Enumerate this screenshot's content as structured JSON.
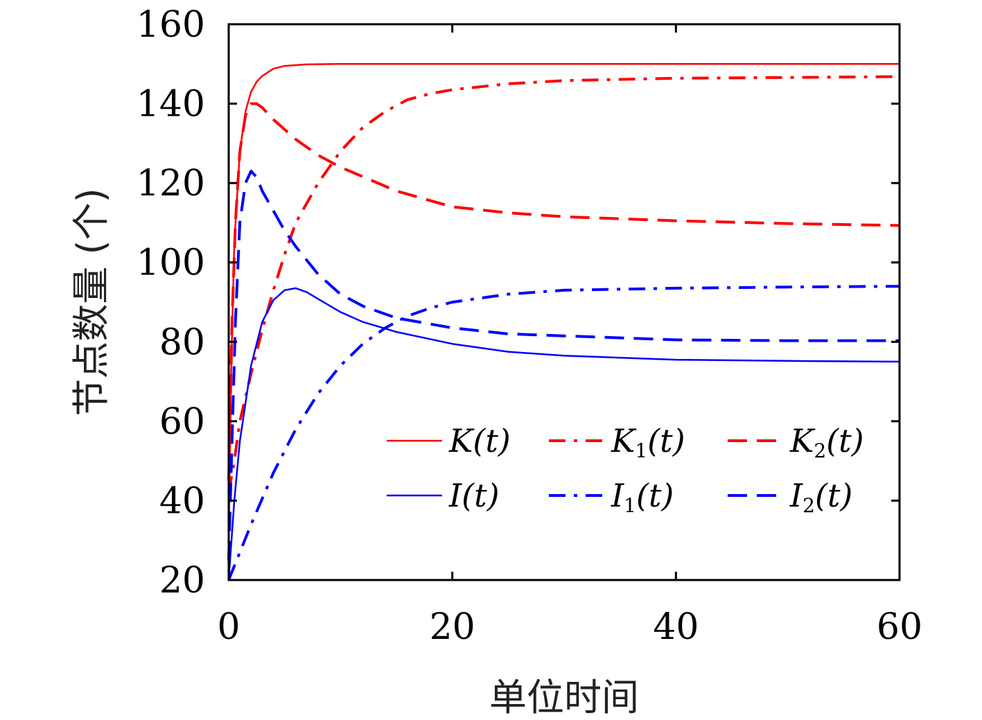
{
  "chart_data": {
    "type": "line",
    "title": "",
    "xlabel": "单位时间",
    "ylabel": "节点数量 (个)",
    "xlim": [
      0,
      60
    ],
    "ylim": [
      20,
      160
    ],
    "xticks": [
      0,
      20,
      40,
      60
    ],
    "yticks": [
      20,
      40,
      60,
      80,
      100,
      120,
      140,
      160
    ],
    "grid": false,
    "legend_position": "lower-right",
    "series": [
      {
        "name": "K(t)",
        "label_main": "K",
        "label_sub": "",
        "color": "#ff0000",
        "dash": "solid",
        "width": 2.5,
        "x": [
          0,
          0.2,
          0.5,
          1,
          1.5,
          2,
          2.5,
          3,
          4,
          5,
          7,
          10,
          20,
          40,
          60
        ],
        "y": [
          30,
          70,
          105,
          128,
          138,
          143,
          145.5,
          147,
          148.8,
          149.5,
          149.9,
          150,
          150,
          150,
          150
        ]
      },
      {
        "name": "K1(t)",
        "label_main": "K",
        "label_sub": "1",
        "color": "#ff0000",
        "dash": "dashdot",
        "width": 4,
        "x": [
          0,
          0.5,
          1,
          2,
          3,
          4,
          5,
          6,
          8,
          10,
          12,
          14,
          16,
          18,
          20,
          25,
          30,
          40,
          50,
          60
        ],
        "y": [
          42,
          50,
          60,
          72,
          83,
          93,
          102,
          110,
          120,
          128,
          134,
          138,
          141,
          142.5,
          143.5,
          145,
          145.8,
          146.4,
          146.6,
          146.8
        ]
      },
      {
        "name": "K2(t)",
        "label_main": "K",
        "label_sub": "2",
        "color": "#ff0000",
        "dash": "dashed",
        "width": 4,
        "x": [
          0,
          0.3,
          0.6,
          1,
          1.5,
          2,
          2.5,
          3,
          4,
          6,
          8,
          10,
          15,
          20,
          25,
          30,
          40,
          50,
          60
        ],
        "y": [
          45,
          85,
          110,
          128,
          137,
          140,
          140,
          139,
          136,
          131,
          127,
          124,
          118,
          114,
          112.5,
          111.5,
          110.5,
          109.8,
          109.3
        ]
      },
      {
        "name": "I(t)",
        "label_main": "I",
        "label_sub": "",
        "color": "#0000ff",
        "dash": "solid",
        "width": 2.5,
        "x": [
          0,
          0.5,
          1,
          2,
          3,
          4,
          5,
          6,
          7,
          8,
          10,
          12,
          15,
          20,
          25,
          30,
          40,
          50,
          60
        ],
        "y": [
          20,
          40,
          55,
          74,
          85,
          90.5,
          93,
          93.5,
          92.5,
          90.8,
          87.5,
          85,
          82.5,
          79.5,
          77.5,
          76.5,
          75.5,
          75.2,
          75
        ]
      },
      {
        "name": "I1(t)",
        "label_main": "I",
        "label_sub": "1",
        "color": "#0000ff",
        "dash": "dashdot",
        "width": 4,
        "x": [
          0,
          2,
          4,
          6,
          8,
          10,
          12,
          14,
          16,
          18,
          20,
          25,
          30,
          40,
          50,
          60
        ],
        "y": [
          20,
          34,
          47,
          58,
          67,
          74,
          79.5,
          83.5,
          86.5,
          88.5,
          90,
          92,
          93,
          93.5,
          93.8,
          94
        ]
      },
      {
        "name": "I2(t)",
        "label_main": "I",
        "label_sub": "2",
        "color": "#0000ff",
        "dash": "dashed",
        "width": 4,
        "x": [
          0,
          0.3,
          0.6,
          1,
          1.5,
          2,
          2.5,
          3,
          4,
          5,
          6,
          8,
          10,
          12,
          15,
          20,
          25,
          30,
          40,
          50,
          60
        ],
        "y": [
          25,
          55,
          85,
          110,
          120,
          123,
          121.5,
          118,
          113,
          108,
          104,
          97,
          92,
          89,
          86,
          83.5,
          82,
          81.5,
          80.5,
          80.3,
          80.3
        ]
      }
    ]
  }
}
